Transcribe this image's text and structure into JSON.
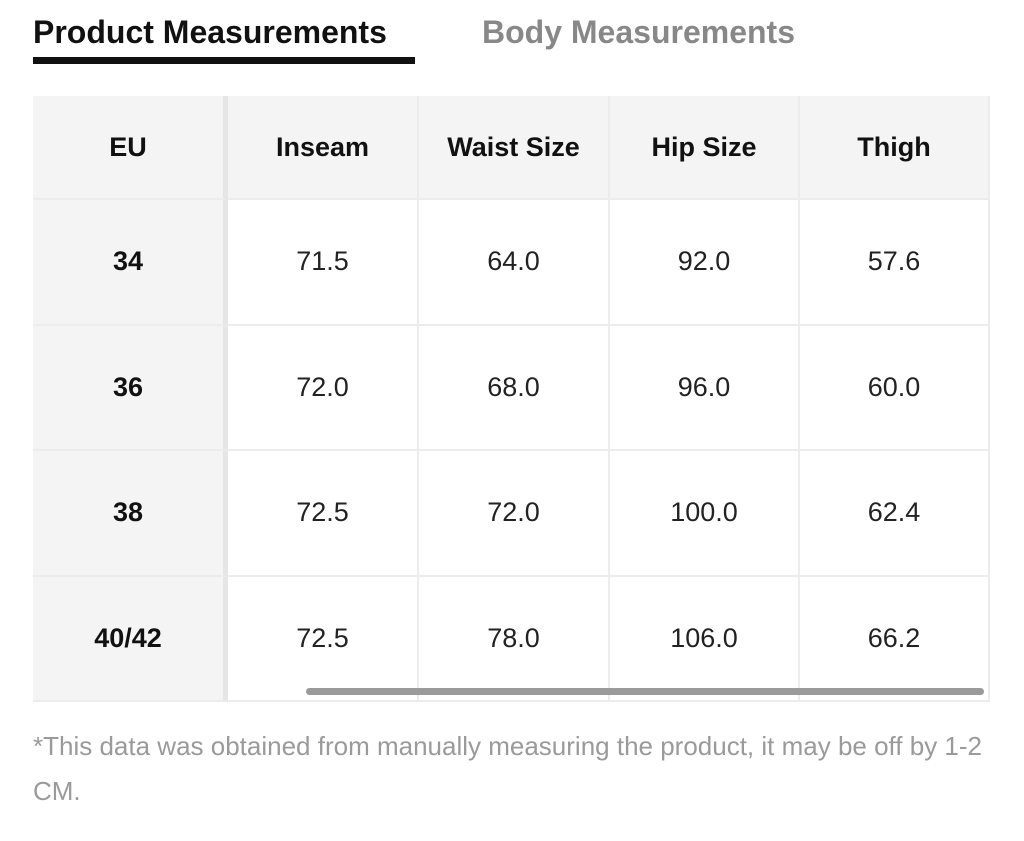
{
  "tabs": [
    {
      "label": "Product Measurements",
      "active": true
    },
    {
      "label": "Body Measurements",
      "active": false
    }
  ],
  "table": {
    "header": [
      "EU",
      "Inseam",
      "Waist Size",
      "Hip Size",
      "Thigh"
    ],
    "rows": [
      [
        "34",
        "71.5",
        "64.0",
        "92.0",
        "57.6"
      ],
      [
        "36",
        "72.0",
        "68.0",
        "96.0",
        "60.0"
      ],
      [
        "38",
        "72.5",
        "72.0",
        "100.0",
        "62.4"
      ],
      [
        "40/42",
        "72.5",
        "78.0",
        "106.0",
        "66.2"
      ]
    ]
  },
  "footnote": "*This data was obtained from manually measuring the product, it may be off by 1-2 CM."
}
